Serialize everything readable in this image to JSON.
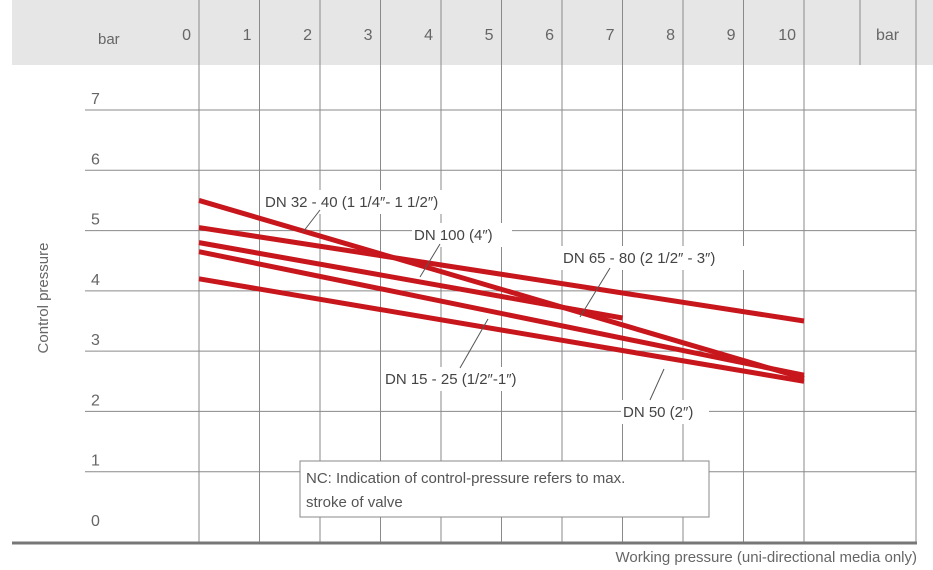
{
  "chart_data": {
    "type": "line",
    "x_unit_label": "bar",
    "x_unit_label_right": "bar",
    "y_unit_label": "bar",
    "x_ticks": [
      "0",
      "1",
      "2",
      "3",
      "4",
      "5",
      "6",
      "7",
      "8",
      "9",
      "10"
    ],
    "y_ticks": [
      "0",
      "1",
      "2",
      "3",
      "4",
      "5",
      "6",
      "7"
    ],
    "xlim": [
      0,
      10
    ],
    "ylim": [
      0,
      7
    ],
    "xlabel": "Working pressure (uni-directional media only)",
    "ylabel": "Control pressure",
    "series": [
      {
        "name": "DN 32 - 40 (1 1/4″- 1 1/2″)",
        "x": [
          0,
          10
        ],
        "y": [
          5.5,
          2.55
        ]
      },
      {
        "name": "DN 100 (4″)",
        "x": [
          0,
          10
        ],
        "y": [
          5.05,
          3.5
        ]
      },
      {
        "name": "DN 65 - 80 (2 1/2″ - 3″)",
        "x": [
          0,
          7
        ],
        "y": [
          4.8,
          3.55
        ]
      },
      {
        "name": "DN 15 - 25 (1/2″-1″)",
        "x": [
          0,
          10
        ],
        "y": [
          4.65,
          2.6
        ]
      },
      {
        "name": "DN 50 (2″)",
        "x": [
          0,
          10
        ],
        "y": [
          4.2,
          2.5
        ]
      }
    ],
    "series_color": "#c8161d",
    "grid": true,
    "note": "NC: Indication of control-pressure refers to max. stroke of valve"
  }
}
